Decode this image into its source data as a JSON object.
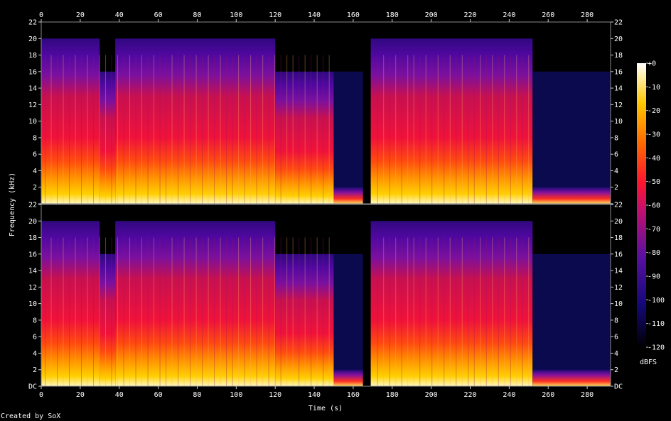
{
  "chart_data": {
    "type": "heatmap",
    "title": "",
    "xlabel": "Time (s)",
    "ylabel": "Frequency (kHz)",
    "xlim": [
      0,
      292
    ],
    "ylim": [
      0,
      22
    ],
    "x_ticks": [
      "0",
      "20",
      "40",
      "60",
      "80",
      "100",
      "120",
      "140",
      "160",
      "180",
      "200",
      "220",
      "240",
      "260",
      "280"
    ],
    "y_ticks": [
      "DC",
      "2",
      "4",
      "6",
      "8",
      "10",
      "12",
      "14",
      "16",
      "18",
      "20",
      "22"
    ],
    "colorbar": {
      "label": "dBFS",
      "ticks": [
        "+0",
        "-10",
        "-20",
        "-30",
        "-40",
        "-50",
        "-60",
        "-70",
        "-80",
        "-90",
        "-100",
        "-110",
        "-120"
      ],
      "range": [
        -120,
        0
      ]
    },
    "channels": 2,
    "series": [
      {
        "channel": 1,
        "segments": [
          {
            "t": [
              0,
              30
            ],
            "cutoff_khz": 20
          },
          {
            "t": [
              30,
              38
            ],
            "cutoff_khz": 16
          },
          {
            "t": [
              38,
              120
            ],
            "cutoff_khz": 20
          },
          {
            "t": [
              120,
              150
            ],
            "cutoff_khz": 16
          },
          {
            "t": [
              150,
              165
            ],
            "cutoff_khz": 2
          },
          {
            "t": [
              165,
              169
            ],
            "cutoff_khz": 0
          },
          {
            "t": [
              169,
              252
            ],
            "cutoff_khz": 20
          },
          {
            "t": [
              252,
              292
            ],
            "cutoff_khz": 2
          }
        ]
      },
      {
        "channel": 2,
        "segments": [
          {
            "t": [
              0,
              30
            ],
            "cutoff_khz": 20
          },
          {
            "t": [
              30,
              38
            ],
            "cutoff_khz": 16
          },
          {
            "t": [
              38,
              120
            ],
            "cutoff_khz": 20
          },
          {
            "t": [
              120,
              150
            ],
            "cutoff_khz": 16
          },
          {
            "t": [
              150,
              165
            ],
            "cutoff_khz": 2
          },
          {
            "t": [
              165,
              169
            ],
            "cutoff_khz": 0
          },
          {
            "t": [
              169,
              252
            ],
            "cutoff_khz": 20
          },
          {
            "t": [
              252,
              292
            ],
            "cutoff_khz": 2
          }
        ]
      }
    ],
    "colors": {
      "floor": "#0c0a4e",
      "low": "#6a10a8",
      "mid": "#e8123a",
      "high": "#ff8c00",
      "peak": "#fff4a0"
    }
  },
  "footer": {
    "credit": "Created by SoX"
  }
}
